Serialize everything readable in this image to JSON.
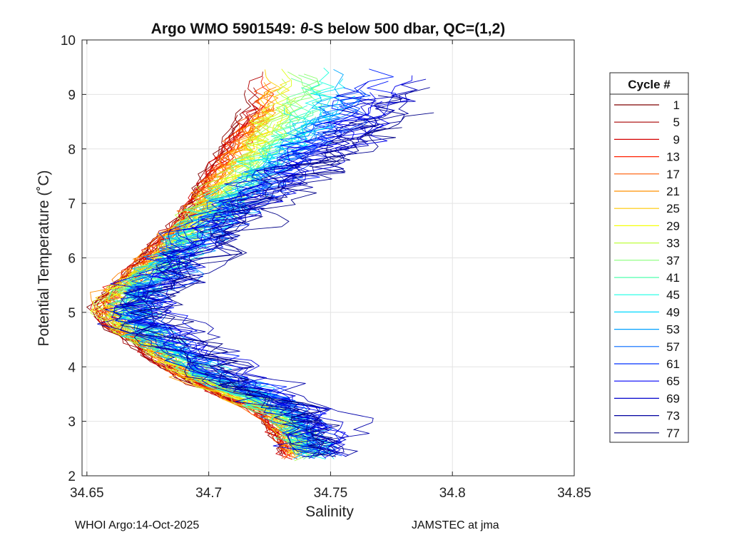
{
  "chart_data": {
    "type": "line",
    "title_prefix": "Argo WMO 5901549: ",
    "title_theta": "θ",
    "title_suffix": "-S below 500 dbar,  QC=(1,2)",
    "xlabel": "Salinity",
    "ylabel": "Potential Temperature (˚C)",
    "xlim": [
      34.648,
      34.85
    ],
    "ylim": [
      2,
      10
    ],
    "xticks": [
      34.65,
      34.7,
      34.75,
      34.8,
      34.85
    ],
    "xtick_labels": [
      "34.65",
      "34.7",
      "34.75",
      "34.8",
      "34.85"
    ],
    "yticks": [
      2,
      3,
      4,
      5,
      6,
      7,
      8,
      9,
      10
    ],
    "ytick_labels": [
      "2",
      "3",
      "4",
      "5",
      "6",
      "7",
      "8",
      "9",
      "10"
    ],
    "grid": true,
    "legend_title": "Cycle #",
    "legend_position": "outside-right",
    "legend": [
      {
        "label": "1",
        "color": "#7f0000"
      },
      {
        "label": "5",
        "color": "#a80000"
      },
      {
        "label": "9",
        "color": "#d40000"
      },
      {
        "label": "13",
        "color": "#ff2000"
      },
      {
        "label": "17",
        "color": "#ff5a00"
      },
      {
        "label": "21",
        "color": "#ff9000"
      },
      {
        "label": "25",
        "color": "#ffc800"
      },
      {
        "label": "29",
        "color": "#f5ff0a"
      },
      {
        "label": "33",
        "color": "#bfff3f"
      },
      {
        "label": "37",
        "color": "#86ff78"
      },
      {
        "label": "41",
        "color": "#4fffae"
      },
      {
        "label": "45",
        "color": "#1affe5"
      },
      {
        "label": "49",
        "color": "#00d8ff"
      },
      {
        "label": "53",
        "color": "#00a0ff"
      },
      {
        "label": "57",
        "color": "#0068ff"
      },
      {
        "label": "61",
        "color": "#0030ff"
      },
      {
        "label": "65",
        "color": "#0000f8"
      },
      {
        "label": "69",
        "color": "#0000cc"
      },
      {
        "label": "73",
        "color": "#0000a0"
      },
      {
        "label": "77",
        "color": "#00007f"
      }
    ],
    "profile_template": [
      [
        34.742,
        2.35
      ],
      [
        34.74,
        2.6
      ],
      [
        34.737,
        2.9
      ],
      [
        34.73,
        3.2
      ],
      [
        34.715,
        3.5
      ],
      [
        34.7,
        3.8
      ],
      [
        34.69,
        4.1
      ],
      [
        34.678,
        4.5
      ],
      [
        34.668,
        4.8
      ],
      [
        34.665,
        5.1
      ],
      [
        34.67,
        5.4
      ],
      [
        34.68,
        5.8
      ],
      [
        34.69,
        6.3
      ],
      [
        34.7,
        6.8
      ],
      [
        34.708,
        7.3
      ],
      [
        34.715,
        7.8
      ],
      [
        34.722,
        8.3
      ],
      [
        34.728,
        8.8
      ]
    ],
    "series_count": 78,
    "series_note": "one theta-S profile per cycle 0-77, colored by cycle number"
  },
  "footer": {
    "left": "WHOI Argo:14-Oct-2025",
    "right": "JAMSTEC at jma"
  }
}
